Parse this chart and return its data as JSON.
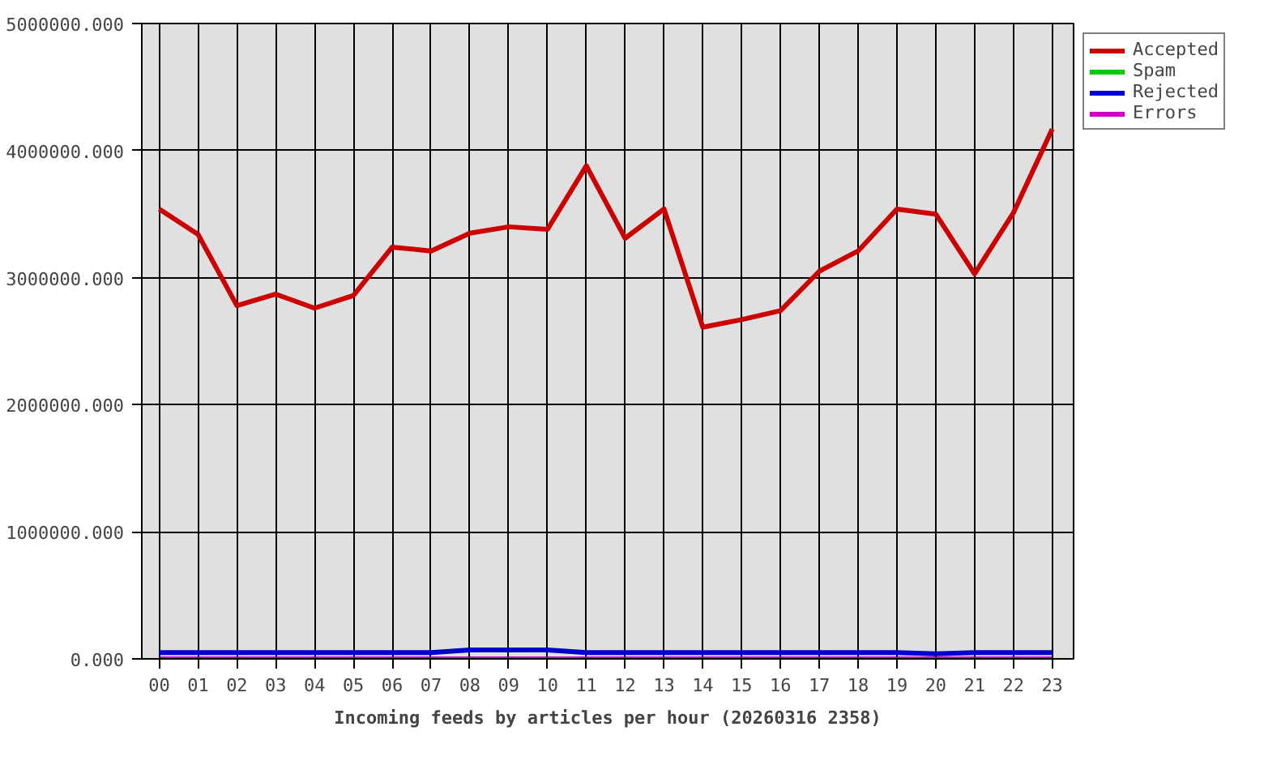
{
  "chart_data": {
    "type": "line",
    "title": "Incoming feeds by articles per hour (20260316 2358)",
    "categories": [
      "00",
      "01",
      "02",
      "03",
      "04",
      "05",
      "06",
      "07",
      "08",
      "09",
      "10",
      "11",
      "12",
      "13",
      "14",
      "15",
      "16",
      "17",
      "18",
      "19",
      "20",
      "21",
      "22",
      "23"
    ],
    "series": [
      {
        "name": "Accepted",
        "color": "#cc0000",
        "values": [
          3540000,
          3340000,
          2780000,
          2870000,
          2760000,
          2860000,
          3240000,
          3210000,
          3350000,
          3400000,
          3380000,
          3880000,
          3310000,
          3540000,
          2610000,
          2670000,
          2740000,
          3050000,
          3210000,
          3540000,
          3500000,
          3030000,
          3510000,
          4170000
        ]
      },
      {
        "name": "Spam",
        "color": "#00cc00",
        "values": [
          null,
          null,
          null,
          null,
          null,
          null,
          null,
          null,
          null,
          null,
          null,
          null,
          null,
          null,
          null,
          null,
          null,
          null,
          null,
          null,
          null,
          null,
          null,
          null
        ]
      },
      {
        "name": "Rejected",
        "color": "#0000cc",
        "values": [
          50000,
          50000,
          50000,
          50000,
          50000,
          50000,
          50000,
          50000,
          70000,
          70000,
          70000,
          50000,
          50000,
          50000,
          50000,
          50000,
          50000,
          50000,
          50000,
          50000,
          40000,
          50000,
          50000,
          50000
        ]
      },
      {
        "name": "Errors",
        "color": "#cc00cc",
        "values": [
          0,
          0,
          0,
          0,
          0,
          0,
          0,
          0,
          0,
          0,
          0,
          0,
          0,
          0,
          0,
          0,
          0,
          0,
          0,
          0,
          0,
          0,
          0,
          0
        ]
      }
    ],
    "ylim": [
      0,
      5000000
    ],
    "yticks": [
      {
        "value": 0,
        "label": "0.000"
      },
      {
        "value": 1000000,
        "label": "1000000.000"
      },
      {
        "value": 2000000,
        "label": "2000000.000"
      },
      {
        "value": 3000000,
        "label": "3000000.000"
      },
      {
        "value": 4000000,
        "label": "4000000.000"
      },
      {
        "value": 5000000,
        "label": "5000000.000"
      }
    ],
    "grid": true,
    "legend": "top right",
    "marker": "none",
    "line_style": "solid"
  }
}
